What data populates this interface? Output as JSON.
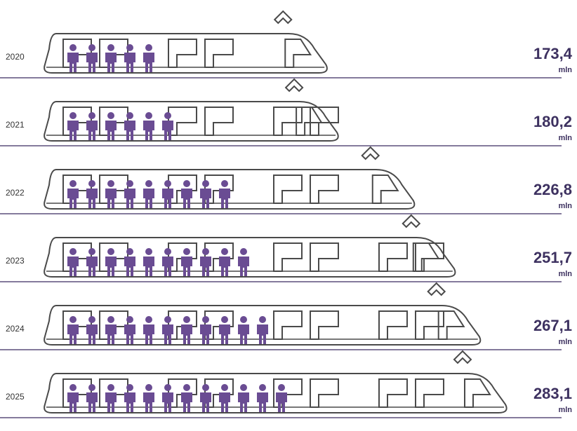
{
  "chart_data": {
    "type": "pictogram",
    "categories": [
      "2020",
      "2021",
      "2022",
      "2023",
      "2024",
      "2025"
    ],
    "values": [
      173.4,
      180.2,
      226.8,
      251.7,
      267.1,
      283.1
    ],
    "value_labels": [
      "173,4",
      "180,2",
      "226,8",
      "251,7",
      "267,1",
      "283,1"
    ],
    "unit": "mln",
    "icons": [
      5,
      6,
      9,
      10,
      11,
      12
    ],
    "color": "#6a4c93"
  }
}
